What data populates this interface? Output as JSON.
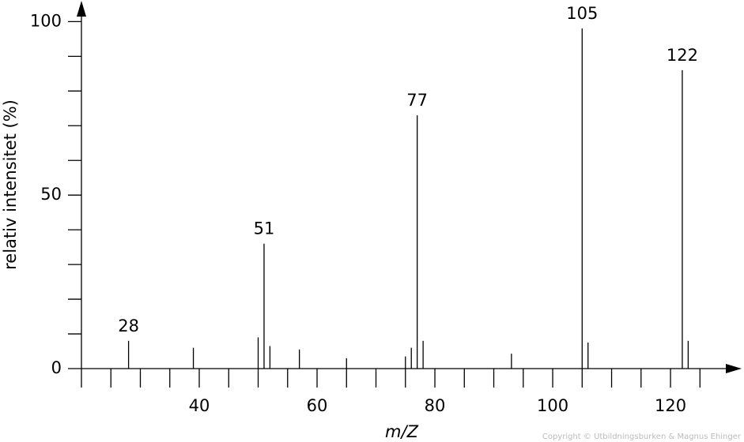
{
  "chart_data": {
    "type": "stem",
    "xlabel": "m/Z",
    "ylabel": "relativ intensitet (%)",
    "credit": "Copyright © Utbildningsburken & Magnus Ehinger",
    "xlim": [
      20,
      131
    ],
    "ylim": [
      0,
      106
    ],
    "xticks": [
      40,
      60,
      80,
      100,
      120
    ],
    "xminorticks": [
      25,
      30,
      35,
      45,
      50,
      55,
      65,
      70,
      75,
      85,
      90,
      95,
      105,
      110,
      115,
      125
    ],
    "yticks": [
      0,
      50,
      100
    ],
    "yminorticks": [
      10,
      20,
      30,
      40,
      60,
      70,
      80,
      90
    ],
    "color": "#000000",
    "series": [
      {
        "show_labels": true,
        "x": [
          28,
          51,
          77,
          105,
          122
        ],
        "values": [
          8,
          36,
          73,
          98,
          86
        ]
      },
      {
        "show_labels": false,
        "x": [
          39,
          50,
          52,
          57,
          65,
          75,
          76,
          78,
          93,
          106,
          123
        ],
        "values": [
          6,
          9,
          6.5,
          5.5,
          3,
          3.5,
          6,
          8,
          4.3,
          7.5,
          8
        ]
      }
    ]
  }
}
